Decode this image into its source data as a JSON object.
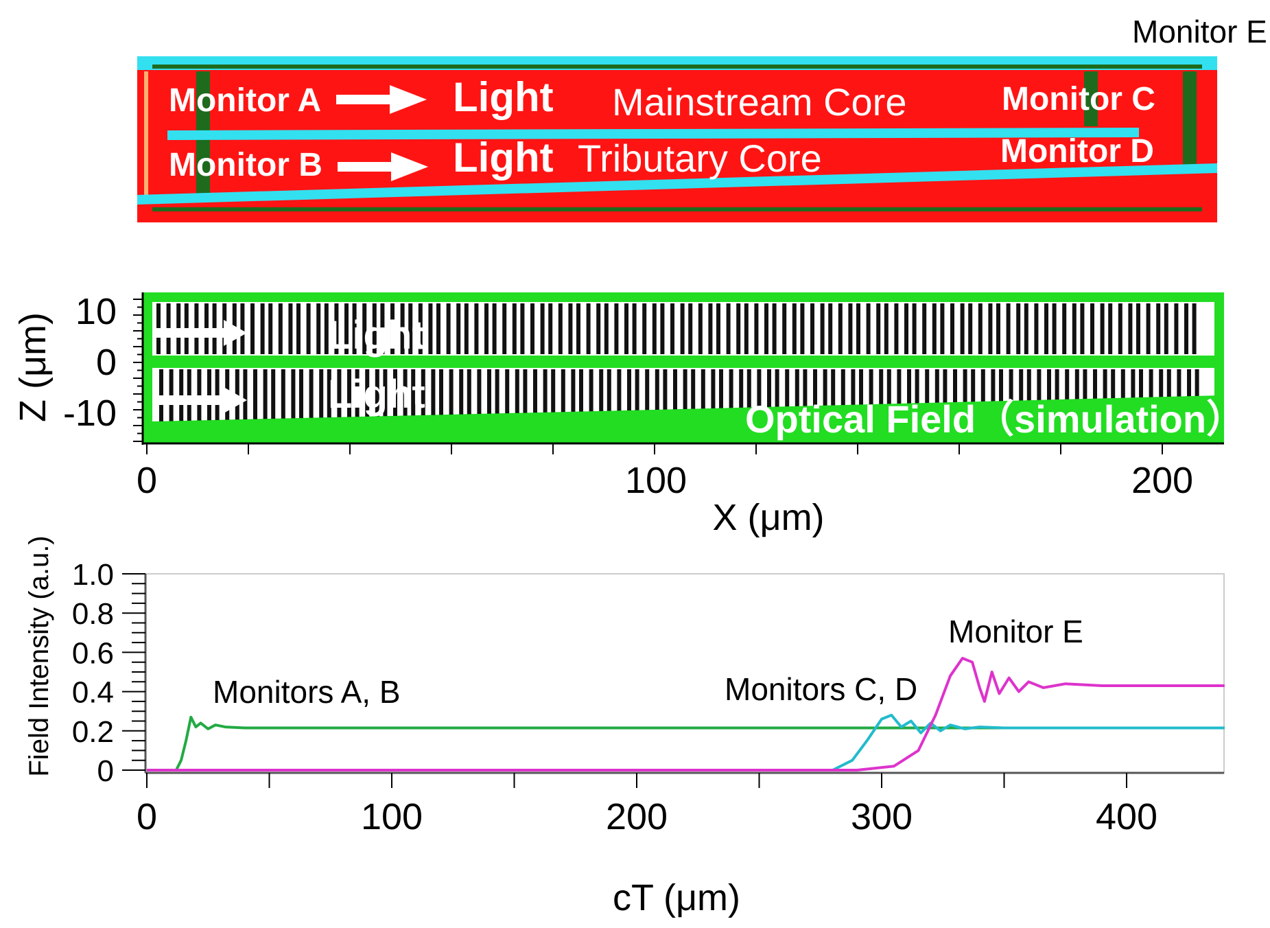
{
  "structure": {
    "monitor_e_label": "Monitor E",
    "monitor_a_label": "Monitor A",
    "monitor_b_label": "Monitor B",
    "monitor_c_label": "Monitor C",
    "monitor_d_label": "Monitor D",
    "light_upper": "Light",
    "light_lower": "Light",
    "mainstream_core": "Mainstream Core",
    "tributary_core": "Tributary Core",
    "colors": {
      "background": "#ff1414",
      "core": "#33e0f0",
      "monitor": "#1e6b1e"
    }
  },
  "field_panel": {
    "ylabel": "Z (μm)",
    "xlabel": "X (μm)",
    "yticks": [
      "10",
      "0",
      "-10"
    ],
    "xticks": [
      "0",
      "100",
      "200"
    ],
    "light_upper": "Light",
    "light_lower": "Light",
    "field_label": "Optical Field（simulation）",
    "colors": {
      "frame": "#22dd22"
    }
  },
  "chart_data": {
    "type": "line",
    "xlabel": "cT (μm)",
    "ylabel": "Field Intensity (a.u.)",
    "xlim": [
      0,
      440
    ],
    "ylim": [
      0,
      1.0
    ],
    "xticks": [
      "0",
      "100",
      "200",
      "300",
      "400"
    ],
    "yticks": [
      "0",
      "0.2",
      "0.4",
      "0.6",
      "0.8",
      "1.0"
    ],
    "annotations": {
      "monitors_ab": "Monitors A, B",
      "monitors_cd": "Monitors C, D",
      "monitor_e": "Monitor E"
    },
    "series": [
      {
        "color": "#22aa44",
        "x": [
          0,
          12,
          14,
          16,
          18,
          20,
          22,
          25,
          28,
          32,
          40,
          60,
          100,
          200,
          300,
          400,
          440
        ],
        "y": [
          0,
          0,
          0.05,
          0.15,
          0.27,
          0.22,
          0.24,
          0.21,
          0.23,
          0.22,
          0.215,
          0.215,
          0.215,
          0.215,
          0.215,
          0.215,
          0.215
        ]
      },
      {
        "color": "#22bbcc",
        "x": [
          0,
          280,
          288,
          294,
          300,
          304,
          308,
          312,
          316,
          320,
          324,
          328,
          334,
          340,
          350,
          370,
          400,
          440
        ],
        "y": [
          0,
          0,
          0.05,
          0.15,
          0.26,
          0.28,
          0.22,
          0.25,
          0.19,
          0.24,
          0.2,
          0.23,
          0.21,
          0.22,
          0.215,
          0.215,
          0.215,
          0.215
        ]
      },
      {
        "color": "#dd33cc",
        "x": [
          0,
          290,
          305,
          315,
          322,
          328,
          333,
          337,
          340,
          342,
          345,
          348,
          352,
          356,
          360,
          366,
          375,
          390,
          410,
          440
        ],
        "y": [
          0,
          0,
          0.02,
          0.1,
          0.28,
          0.48,
          0.57,
          0.55,
          0.42,
          0.35,
          0.5,
          0.39,
          0.47,
          0.4,
          0.45,
          0.42,
          0.44,
          0.43,
          0.43,
          0.43
        ]
      }
    ]
  }
}
